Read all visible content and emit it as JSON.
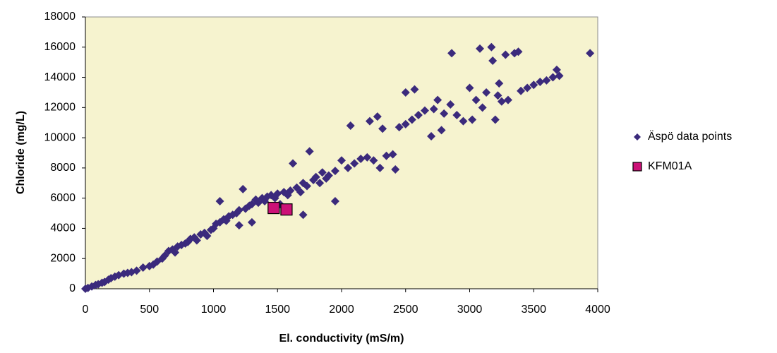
{
  "chart_data": {
    "type": "scatter",
    "xlabel": "El. conductivity (mS/m)",
    "ylabel": "Chloride (mg/L)",
    "xlim": [
      0,
      4000
    ],
    "xticks": [
      0,
      500,
      1000,
      1500,
      2000,
      2500,
      3000,
      3500,
      4000
    ],
    "ylim": [
      0,
      18000
    ],
    "yticks": [
      0,
      2000,
      4000,
      6000,
      8000,
      10000,
      12000,
      14000,
      16000,
      18000
    ],
    "grid": false,
    "legend": "right",
    "series": [
      {
        "name": "Äspö data points",
        "color": "#3b2a7c",
        "marker": "diamond",
        "x": [
          0,
          20,
          50,
          80,
          100,
          130,
          150,
          180,
          200,
          230,
          260,
          300,
          330,
          360,
          400,
          450,
          500,
          530,
          560,
          600,
          620,
          650,
          680,
          700,
          720,
          750,
          780,
          800,
          820,
          850,
          870,
          900,
          930,
          950,
          980,
          1000,
          1020,
          1050,
          1050,
          1080,
          1100,
          1120,
          1150,
          1180,
          1200,
          1200,
          1230,
          1250,
          1280,
          1300,
          1300,
          1330,
          1350,
          1380,
          1400,
          1420,
          1450,
          1480,
          1500,
          1520,
          1550,
          1580,
          1600,
          1620,
          1650,
          1680,
          1700,
          1700,
          1730,
          1750,
          1780,
          1800,
          1830,
          1850,
          1880,
          1900,
          1950,
          1950,
          2000,
          2050,
          2070,
          2100,
          2150,
          2200,
          2220,
          2250,
          2280,
          2300,
          2320,
          2350,
          2400,
          2420,
          2450,
          2500,
          2500,
          2550,
          2570,
          2600,
          2650,
          2700,
          2720,
          2750,
          2780,
          2800,
          2850,
          2860,
          2900,
          2950,
          3000,
          3020,
          3050,
          3080,
          3100,
          3130,
          3170,
          3180,
          3200,
          3220,
          3230,
          3250,
          3280,
          3300,
          3350,
          3380,
          3400,
          3450,
          3500,
          3550,
          3600,
          3650,
          3680,
          3700,
          3940
        ],
        "values": [
          0,
          50,
          150,
          250,
          300,
          400,
          450,
          600,
          700,
          800,
          900,
          1000,
          1050,
          1100,
          1200,
          1400,
          1500,
          1600,
          1800,
          2000,
          2200,
          2500,
          2600,
          2400,
          2800,
          2900,
          3000,
          3100,
          3300,
          3400,
          3200,
          3600,
          3700,
          3500,
          3900,
          4000,
          4300,
          4400,
          5800,
          4600,
          4500,
          4800,
          4900,
          5000,
          5200,
          4200,
          6600,
          5300,
          5500,
          5600,
          4400,
          5900,
          5700,
          6000,
          5800,
          6100,
          6200,
          6000,
          6300,
          5600,
          6400,
          6200,
          6500,
          8300,
          6700,
          6400,
          4900,
          7000,
          6800,
          9100,
          7200,
          7400,
          7000,
          7700,
          7300,
          7500,
          5800,
          7800,
          8500,
          8000,
          10800,
          8300,
          8600,
          8700,
          11100,
          8500,
          11400,
          8000,
          10600,
          8800,
          8900,
          7900,
          10700,
          13000,
          10900,
          11200,
          13200,
          11500,
          11800,
          10100,
          11900,
          12500,
          10500,
          11600,
          12200,
          15600,
          11500,
          11100,
          13300,
          11200,
          12500,
          15900,
          12000,
          13000,
          16000,
          15100,
          11200,
          12800,
          13600,
          12400,
          15500,
          12500,
          15600,
          15700,
          13100,
          13300,
          13500,
          13700,
          13800,
          14000,
          14500,
          14100,
          15600
        ]
      },
      {
        "name": "KFM01A",
        "color": "#cc1177",
        "marker": "square",
        "x": [
          1470,
          1570
        ],
        "values": [
          5350,
          5250
        ]
      }
    ]
  }
}
